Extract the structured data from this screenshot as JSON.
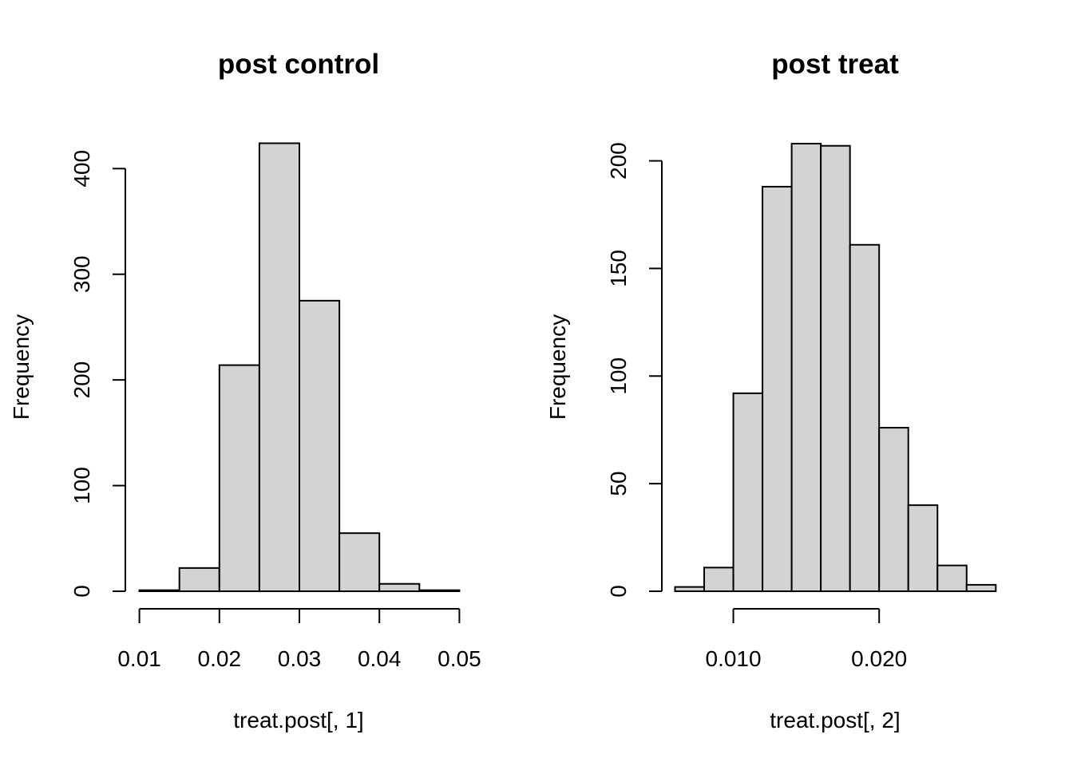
{
  "chart_data": [
    {
      "type": "bar",
      "title": "post control",
      "xlabel": "treat.post[, 1]",
      "ylabel": "Frequency",
      "bin_edges": [
        0.01,
        0.015,
        0.02,
        0.025,
        0.03,
        0.035,
        0.04,
        0.045,
        0.05
      ],
      "values": [
        1,
        22,
        214,
        424,
        275,
        55,
        7,
        1
      ],
      "xticks": [
        0.01,
        0.02,
        0.03,
        0.04,
        0.05
      ],
      "xtick_labels": [
        "0.01",
        "0.02",
        "0.03",
        "0.04",
        "0.05"
      ],
      "yticks": [
        0,
        100,
        200,
        300,
        400
      ],
      "ytick_labels": [
        "0",
        "100",
        "200",
        "300",
        "400"
      ],
      "xlim": [
        0.01,
        0.05
      ],
      "ylim": [
        0,
        400
      ],
      "grid": false,
      "bar_color": "#d3d3d3"
    },
    {
      "type": "bar",
      "title": "post treat",
      "xlabel": "treat.post[, 2]",
      "ylabel": "Frequency",
      "bin_edges": [
        0.006,
        0.008,
        0.01,
        0.012,
        0.014,
        0.016,
        0.018,
        0.02,
        0.022,
        0.024,
        0.026,
        0.028
      ],
      "values": [
        2,
        11,
        92,
        188,
        208,
        207,
        161,
        76,
        40,
        12,
        3
      ],
      "xticks": [
        0.01,
        0.02
      ],
      "xtick_labels": [
        "0.010",
        "0.020"
      ],
      "yticks": [
        0,
        50,
        100,
        150,
        200
      ],
      "ytick_labels": [
        "0",
        "50",
        "100",
        "150",
        "200"
      ],
      "xlim": [
        0.006,
        0.028
      ],
      "ylim": [
        0,
        200
      ],
      "grid": false,
      "bar_color": "#d3d3d3"
    }
  ]
}
